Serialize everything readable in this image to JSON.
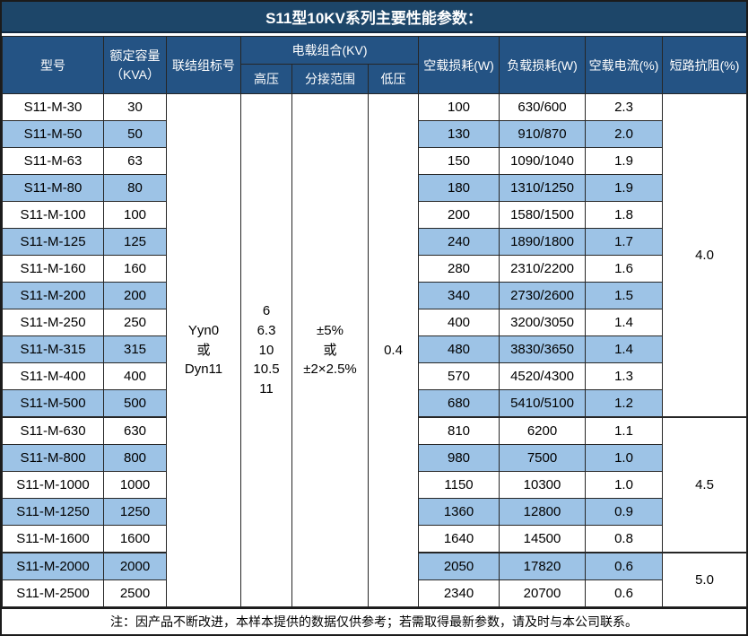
{
  "title": "S11型10KV系列主要性能参数：",
  "header": {
    "model": "型号",
    "capacity_line1": "额定容量",
    "capacity_line2": "（KVA）",
    "vector_group": "联结组标号",
    "voltage_combo": "电载组合(KV)",
    "hv": "高压",
    "tap_range": "分接范围",
    "lv": "低压",
    "no_load_loss": "空载损耗(W)",
    "load_loss": "负载损耗(W)",
    "no_load_current": "空载电流(%)",
    "impedance": "短路抗阻(%)"
  },
  "merged": {
    "vector_group": "Yyn0\n或\nDyn11",
    "hv": "6\n6.3\n10\n10.5\n11",
    "tap_range": "±5%\n或\n±2×2.5%",
    "lv": "0.4"
  },
  "impedance_groups": [
    {
      "value": "4.0",
      "rows": 12
    },
    {
      "value": "4.5",
      "rows": 5
    },
    {
      "value": "5.0",
      "rows": 2
    }
  ],
  "rows": [
    {
      "model": "S11-M-30",
      "capacity": "30",
      "no_load_loss": "100",
      "load_loss": "630/600",
      "no_load_current": "2.3"
    },
    {
      "model": "S11-M-50",
      "capacity": "50",
      "no_load_loss": "130",
      "load_loss": "910/870",
      "no_load_current": "2.0"
    },
    {
      "model": "S11-M-63",
      "capacity": "63",
      "no_load_loss": "150",
      "load_loss": "1090/1040",
      "no_load_current": "1.9"
    },
    {
      "model": "S11-M-80",
      "capacity": "80",
      "no_load_loss": "180",
      "load_loss": "1310/1250",
      "no_load_current": "1.9"
    },
    {
      "model": "S11-M-100",
      "capacity": "100",
      "no_load_loss": "200",
      "load_loss": "1580/1500",
      "no_load_current": "1.8"
    },
    {
      "model": "S11-M-125",
      "capacity": "125",
      "no_load_loss": "240",
      "load_loss": "1890/1800",
      "no_load_current": "1.7"
    },
    {
      "model": "S11-M-160",
      "capacity": "160",
      "no_load_loss": "280",
      "load_loss": "2310/2200",
      "no_load_current": "1.6"
    },
    {
      "model": "S11-M-200",
      "capacity": "200",
      "no_load_loss": "340",
      "load_loss": "2730/2600",
      "no_load_current": "1.5"
    },
    {
      "model": "S11-M-250",
      "capacity": "250",
      "no_load_loss": "400",
      "load_loss": "3200/3050",
      "no_load_current": "1.4"
    },
    {
      "model": "S11-M-315",
      "capacity": "315",
      "no_load_loss": "480",
      "load_loss": "3830/3650",
      "no_load_current": "1.4"
    },
    {
      "model": "S11-M-400",
      "capacity": "400",
      "no_load_loss": "570",
      "load_loss": "4520/4300",
      "no_load_current": "1.3"
    },
    {
      "model": "S11-M-500",
      "capacity": "500",
      "no_load_loss": "680",
      "load_loss": "5410/5100",
      "no_load_current": "1.2"
    },
    {
      "model": "S11-M-630",
      "capacity": "630",
      "no_load_loss": "810",
      "load_loss": "6200",
      "no_load_current": "1.1"
    },
    {
      "model": "S11-M-800",
      "capacity": "800",
      "no_load_loss": "980",
      "load_loss": "7500",
      "no_load_current": "1.0"
    },
    {
      "model": "S11-M-1000",
      "capacity": "1000",
      "no_load_loss": "1150",
      "load_loss": "10300",
      "no_load_current": "1.0"
    },
    {
      "model": "S11-M-1250",
      "capacity": "1250",
      "no_load_loss": "1360",
      "load_loss": "12800",
      "no_load_current": "0.9"
    },
    {
      "model": "S11-M-1600",
      "capacity": "1600",
      "no_load_loss": "1640",
      "load_loss": "14500",
      "no_load_current": "0.8"
    },
    {
      "model": "S11-M-2000",
      "capacity": "2000",
      "no_load_loss": "2050",
      "load_loss": "17820",
      "no_load_current": "0.6"
    },
    {
      "model": "S11-M-2500",
      "capacity": "2500",
      "no_load_loss": "2340",
      "load_loss": "20700",
      "no_load_current": "0.6"
    }
  ],
  "note": "注：因产品不断改进，本样本提供的数据仅供参考；若需取得最新参数，请及时与本公司联系。",
  "colors": {
    "title_bar": "#1D4669",
    "header": "#245384",
    "row_alt": "#9DC3E6",
    "border": "#262626",
    "header_text": "#FFFFFF",
    "body_text": "#000000"
  }
}
